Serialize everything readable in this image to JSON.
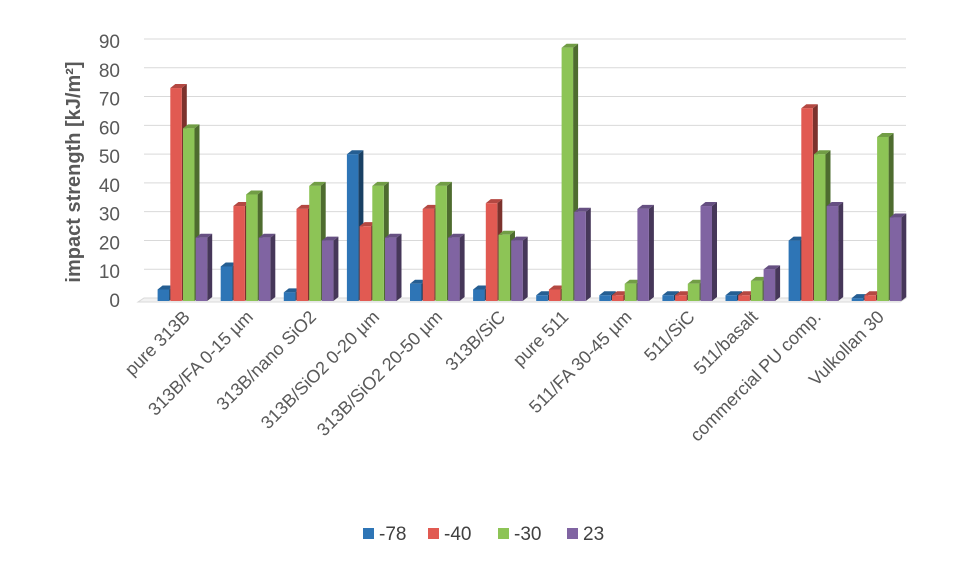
{
  "chart_data": {
    "type": "bar",
    "title": "",
    "xlabel": "",
    "ylabel": "impact strength [kJ/m²]",
    "ylim": [
      0,
      90
    ],
    "yticks": [
      0,
      10,
      20,
      30,
      40,
      50,
      60,
      70,
      80,
      90
    ],
    "grid": true,
    "legend_position": "bottom",
    "categories": [
      "pure 313B",
      "313B/FA 0-15 µm",
      "313B/nano SiO2",
      "313B/SiO2 0-20 µm",
      "313B/SiO2 20-50 µm",
      "313B/SiC",
      "pure 511",
      "511/FA 30-45 µm",
      "511/SiC",
      "511/basalt",
      "commercial PU comp.",
      "Vulkollan 30"
    ],
    "series": [
      {
        "name": "-78",
        "color": "#2E75B6",
        "values": [
          4,
          12,
          3,
          51,
          6,
          4,
          2,
          2,
          2,
          2,
          21,
          1
        ]
      },
      {
        "name": "-40",
        "color": "#E15A52",
        "values": [
          74,
          33,
          32,
          26,
          32,
          34,
          4,
          2,
          2,
          2,
          67,
          2
        ]
      },
      {
        "name": "-30",
        "color": "#8DC456",
        "values": [
          60,
          37,
          40,
          40,
          40,
          23,
          88,
          6,
          6,
          7,
          51,
          57
        ]
      },
      {
        "name": "23",
        "color": "#8064A2",
        "values": [
          22,
          22,
          21,
          22,
          22,
          21,
          31,
          32,
          33,
          11,
          33,
          29
        ]
      }
    ]
  }
}
